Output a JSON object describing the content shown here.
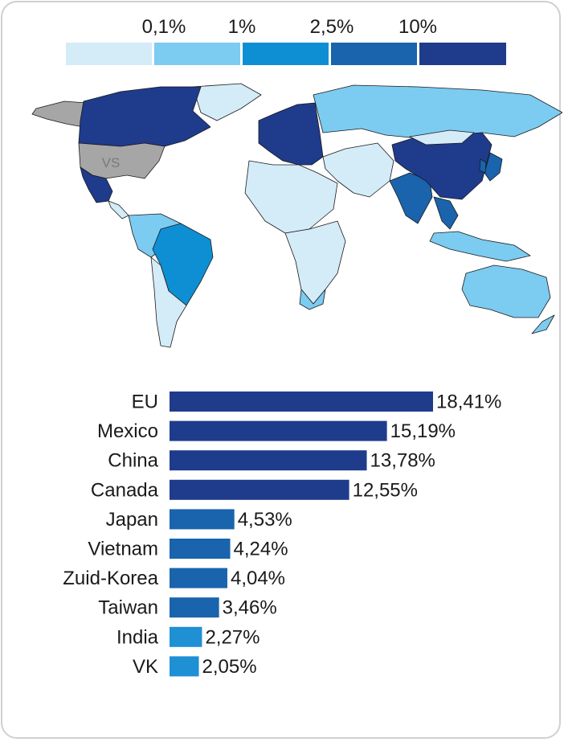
{
  "legend": {
    "labels": [
      "0,1%",
      "1%",
      "2,5%",
      "10%"
    ],
    "colors": [
      "#d4ebf8",
      "#7ccbf1",
      "#0e8fd3",
      "#1964ad",
      "#1f3b8c"
    ]
  },
  "map": {
    "highlight_label": "VS",
    "colors": {
      "highlight": "#a6a6a6",
      "lightest": "#d4ebf8",
      "light": "#7ccbf1",
      "medium": "#0e8fd3",
      "dark": "#1964ad",
      "darkest": "#1f3b8c"
    }
  },
  "chart_data": {
    "type": "bar",
    "orientation": "horizontal",
    "categories": [
      "EU",
      "Mexico",
      "China",
      "Canada",
      "Japan",
      "Vietnam",
      "Zuid-Korea",
      "Taiwan",
      "India",
      "VK"
    ],
    "values": [
      18.41,
      15.19,
      13.78,
      12.55,
      4.53,
      4.24,
      4.04,
      3.46,
      2.27,
      2.05
    ],
    "value_labels": [
      "18,41%",
      "15,19%",
      "13,78%",
      "12,55%",
      "4,53%",
      "4,24%",
      "4,04%",
      "3,46%",
      "2,27%",
      "2,05%"
    ],
    "colors": [
      "#1f3b8c",
      "#1f3b8c",
      "#1f3b8c",
      "#1f3b8c",
      "#1964ad",
      "#1964ad",
      "#1964ad",
      "#1964ad",
      "#1f90d4",
      "#1f90d4"
    ],
    "xlim": [
      0,
      18.41
    ]
  }
}
